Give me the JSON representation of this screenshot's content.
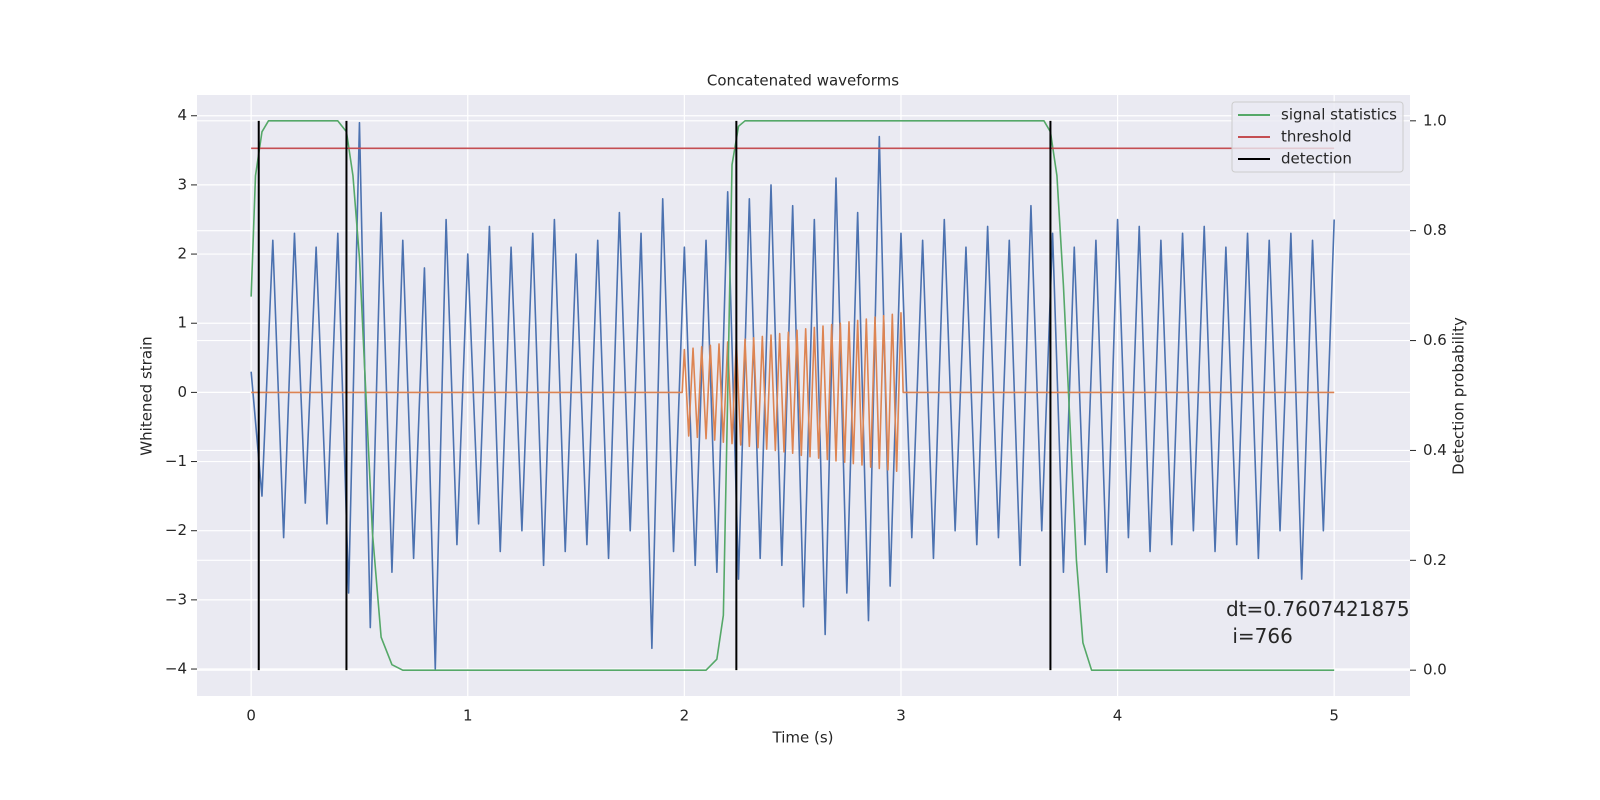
{
  "chart_data": {
    "type": "line",
    "title": "Concatenated waveforms",
    "xlabel": "Time (s)",
    "ylabel": "Whitened strain",
    "y2label": "Detection probability",
    "annotation": "dt=0.7607421875\n i=766",
    "xlim": [
      -0.25,
      5.35
    ],
    "ylim": [
      -4.39,
      4.3
    ],
    "y2lim": [
      -0.047,
      1.047
    ],
    "xticks": [
      0,
      1,
      2,
      3,
      4,
      5
    ],
    "yticks": [
      {
        "value": -4,
        "label": "−4"
      },
      {
        "value": -3,
        "label": "−3"
      },
      {
        "value": -2,
        "label": "−2"
      },
      {
        "value": -1,
        "label": "−1"
      },
      0,
      1,
      2,
      3,
      4
    ],
    "y2ticks": [
      {
        "value": 0,
        "label": "0.0"
      },
      0.2,
      0.4,
      0.6,
      0.8,
      {
        "value": 1,
        "label": "1.0"
      }
    ],
    "grid": true,
    "legend": "upper right",
    "series": [
      {
        "color": "#4c72b0",
        "x": [
          0,
          0.05,
          0.1,
          0.15,
          0.2,
          0.25,
          0.3,
          0.35,
          0.4,
          0.45,
          0.5,
          0.55,
          0.6,
          0.65,
          0.7,
          0.75,
          0.8,
          0.85,
          0.9,
          0.95,
          1,
          1.05,
          1.1,
          1.15,
          1.2,
          1.25,
          1.3,
          1.35,
          1.4,
          1.45,
          1.5,
          1.55,
          1.6,
          1.65,
          1.7,
          1.75,
          1.8,
          1.85,
          1.9,
          1.95,
          2,
          2.05,
          2.1,
          2.15,
          2.2,
          2.25,
          2.3,
          2.35,
          2.4,
          2.45,
          2.5,
          2.55,
          2.6,
          2.65,
          2.7,
          2.75,
          2.8,
          2.85,
          2.9,
          2.95,
          3,
          3.05,
          3.1,
          3.15,
          3.2,
          3.25,
          3.3,
          3.35,
          3.4,
          3.45,
          3.5,
          3.55,
          3.6,
          3.65,
          3.7,
          3.75,
          3.8,
          3.85,
          3.9,
          3.95,
          4,
          4.05,
          4.1,
          4.15,
          4.2,
          4.25,
          4.3,
          4.35,
          4.4,
          4.45,
          4.5,
          4.55,
          4.6,
          4.65,
          4.7,
          4.75,
          4.8,
          4.85,
          4.9,
          4.95,
          5
        ],
        "values": [
          0.3,
          -1.5,
          2.2,
          -2.1,
          2.3,
          -1.6,
          2.1,
          -1.9,
          2.3,
          -2.9,
          3.9,
          -3.4,
          2.6,
          -2.6,
          2.2,
          -2.4,
          1.8,
          -4.0,
          2.5,
          -2.2,
          2.0,
          -1.9,
          2.4,
          -2.3,
          2.1,
          -2.0,
          2.3,
          -2.5,
          2.5,
          -2.3,
          2.0,
          -2.2,
          2.2,
          -2.4,
          2.6,
          -2.0,
          2.3,
          -3.7,
          2.8,
          -2.3,
          2.1,
          -2.5,
          2.2,
          -2.6,
          2.9,
          -2.7,
          2.8,
          -2.4,
          3.0,
          -2.5,
          2.7,
          -3.1,
          2.5,
          -3.5,
          3.1,
          -2.9,
          2.6,
          -3.3,
          3.7,
          -2.8,
          2.3,
          -2.1,
          2.2,
          -2.4,
          2.5,
          -2.0,
          2.1,
          -2.2,
          2.4,
          -2.1,
          2.2,
          -2.5,
          2.7,
          -2.0,
          2.3,
          -2.6,
          2.1,
          -2.2,
          2.2,
          -2.6,
          2.5,
          -2.1,
          2.4,
          -2.3,
          2.2,
          -2.2,
          2.3,
          -2.0,
          2.4,
          -2.3,
          2.1,
          -2.2,
          2.3,
          -2.4,
          2.2,
          -2.0,
          2.3,
          -2.7,
          2.2,
          -2.0,
          2.5
        ]
      },
      {
        "color": "#dd8452",
        "x": [
          0,
          1.99,
          2,
          2.02,
          2.04,
          2.06,
          2.08,
          2.1,
          2.12,
          2.14,
          2.16,
          2.18,
          2.2,
          2.22,
          2.24,
          2.26,
          2.28,
          2.3,
          2.32,
          2.34,
          2.36,
          2.38,
          2.4,
          2.42,
          2.44,
          2.46,
          2.48,
          2.5,
          2.52,
          2.54,
          2.56,
          2.58,
          2.6,
          2.62,
          2.64,
          2.66,
          2.68,
          2.7,
          2.72,
          2.74,
          2.76,
          2.78,
          2.8,
          2.82,
          2.84,
          2.86,
          2.88,
          2.9,
          2.92,
          2.94,
          2.96,
          2.98,
          3,
          3.01,
          5
        ],
        "values": [
          0,
          0,
          0.62,
          -0.63,
          0.64,
          -0.65,
          0.66,
          -0.67,
          0.68,
          -0.69,
          0.7,
          -0.72,
          0.73,
          -0.74,
          0.75,
          -0.76,
          0.77,
          -0.78,
          0.79,
          -0.8,
          0.81,
          -0.82,
          0.83,
          -0.84,
          0.85,
          -0.86,
          0.87,
          -0.88,
          0.9,
          -0.91,
          0.92,
          -0.93,
          0.94,
          -0.95,
          0.96,
          -0.97,
          0.98,
          -0.99,
          1.0,
          -1.01,
          1.02,
          -1.03,
          1.04,
          -1.05,
          1.06,
          -1.08,
          1.09,
          -1.1,
          1.11,
          -1.12,
          1.13,
          -1.14,
          1.15,
          0,
          0
        ]
      },
      {
        "name": "signal statistics",
        "color": "#55a868",
        "axis": "y2",
        "x": [
          0,
          0.02,
          0.05,
          0.08,
          0.4,
          0.44,
          0.47,
          0.5,
          0.53,
          0.56,
          0.6,
          0.65,
          0.7,
          2.1,
          2.15,
          2.18,
          2.2,
          2.22,
          2.25,
          2.28,
          3.66,
          3.69,
          3.72,
          3.75,
          3.78,
          3.81,
          3.84,
          3.88,
          4.5,
          5
        ],
        "values": [
          0.68,
          0.9,
          0.98,
          1.0,
          1.0,
          0.98,
          0.9,
          0.75,
          0.5,
          0.25,
          0.06,
          0.01,
          0.0,
          0.0,
          0.02,
          0.1,
          0.5,
          0.92,
          0.99,
          1.0,
          1.0,
          0.98,
          0.9,
          0.7,
          0.45,
          0.2,
          0.05,
          0.0,
          0.0,
          0.0
        ]
      },
      {
        "name": "threshold",
        "color": "#c44e52",
        "axis": "y2",
        "x": [
          0,
          5
        ],
        "values": [
          0.95,
          0.95
        ]
      },
      {
        "name": "detection",
        "color": "#000000",
        "axis": "y2",
        "type": "vlines",
        "x": [
          0.035,
          0.44,
          2.24,
          3.69
        ],
        "values": [
          1,
          1,
          1,
          1
        ]
      }
    ]
  }
}
